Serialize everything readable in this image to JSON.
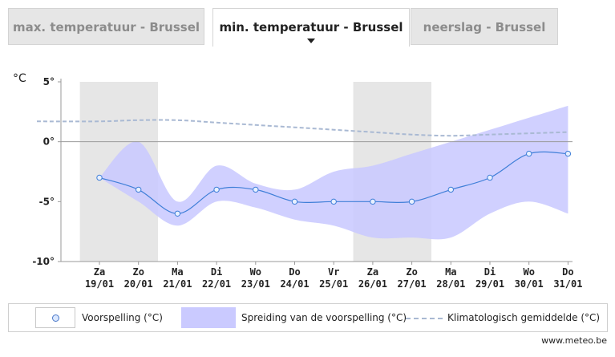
{
  "tabs": [
    {
      "label": "max. temperatuur - Brussel",
      "active": false
    },
    {
      "label": "min. temperatuur - Brussel",
      "active": true
    },
    {
      "label": "neerslag - Brussel",
      "active": false
    }
  ],
  "chart_data": {
    "type": "line",
    "ylabel": "°C",
    "ylim": [
      -10,
      5
    ],
    "yticks": [
      {
        "value": 5,
        "label": "5°"
      },
      {
        "value": 0,
        "label": "0°"
      },
      {
        "value": -5,
        "label": "-5°"
      },
      {
        "value": -10,
        "label": "-10°"
      }
    ],
    "categories": [
      {
        "day": "Za",
        "date": "19/01"
      },
      {
        "day": "Zo",
        "date": "20/01"
      },
      {
        "day": "Ma",
        "date": "21/01"
      },
      {
        "day": "Di",
        "date": "22/01"
      },
      {
        "day": "Wo",
        "date": "23/01"
      },
      {
        "day": "Do",
        "date": "24/01"
      },
      {
        "day": "Vr",
        "date": "25/01"
      },
      {
        "day": "Za",
        "date": "26/01"
      },
      {
        "day": "Zo",
        "date": "27/01"
      },
      {
        "day": "Ma",
        "date": "28/01"
      },
      {
        "day": "Di",
        "date": "29/01"
      },
      {
        "day": "Wo",
        "date": "30/01"
      },
      {
        "day": "Do",
        "date": "31/01"
      }
    ],
    "weekend_shading": [
      [
        0,
        1
      ],
      [
        7,
        8
      ]
    ],
    "series": [
      {
        "name": "Voorspelling (°C)",
        "values": [
          -3,
          -4,
          -6,
          -4,
          -4,
          -5,
          -5,
          -5,
          -5,
          -4,
          -3,
          -1,
          -1
        ]
      },
      {
        "name": "Spreiding van de voorspelling (°C)",
        "upper": [
          -3,
          0,
          -5,
          -2,
          -3.5,
          -4,
          -2.5,
          -2,
          -1,
          0,
          1,
          2,
          3
        ],
        "lower": [
          -3,
          -5,
          -7,
          -5,
          -5.5,
          -6.5,
          -7,
          -8,
          -8,
          -8,
          -6,
          -5,
          -6
        ]
      },
      {
        "name": "Klimatologisch gemiddelde (°C)",
        "values": [
          1.7,
          1.8,
          1.8,
          1.6,
          1.4,
          1.2,
          1.0,
          0.8,
          0.6,
          0.5,
          0.6,
          0.7,
          0.8
        ]
      }
    ],
    "colors": {
      "forecast": "#3f7fd8",
      "band": "#c8c8ff",
      "band_dark": "#adadf0",
      "climatology": "#a9b9d3",
      "weekend": "#e6e6e6"
    },
    "grid": false
  },
  "legend": {
    "forecast": "Voorspelling (°C)",
    "spread": "Spreiding van de voorspelling (°C)",
    "climatology": "Klimatologisch gemiddelde (°C)"
  },
  "credit": "www.meteo.be"
}
